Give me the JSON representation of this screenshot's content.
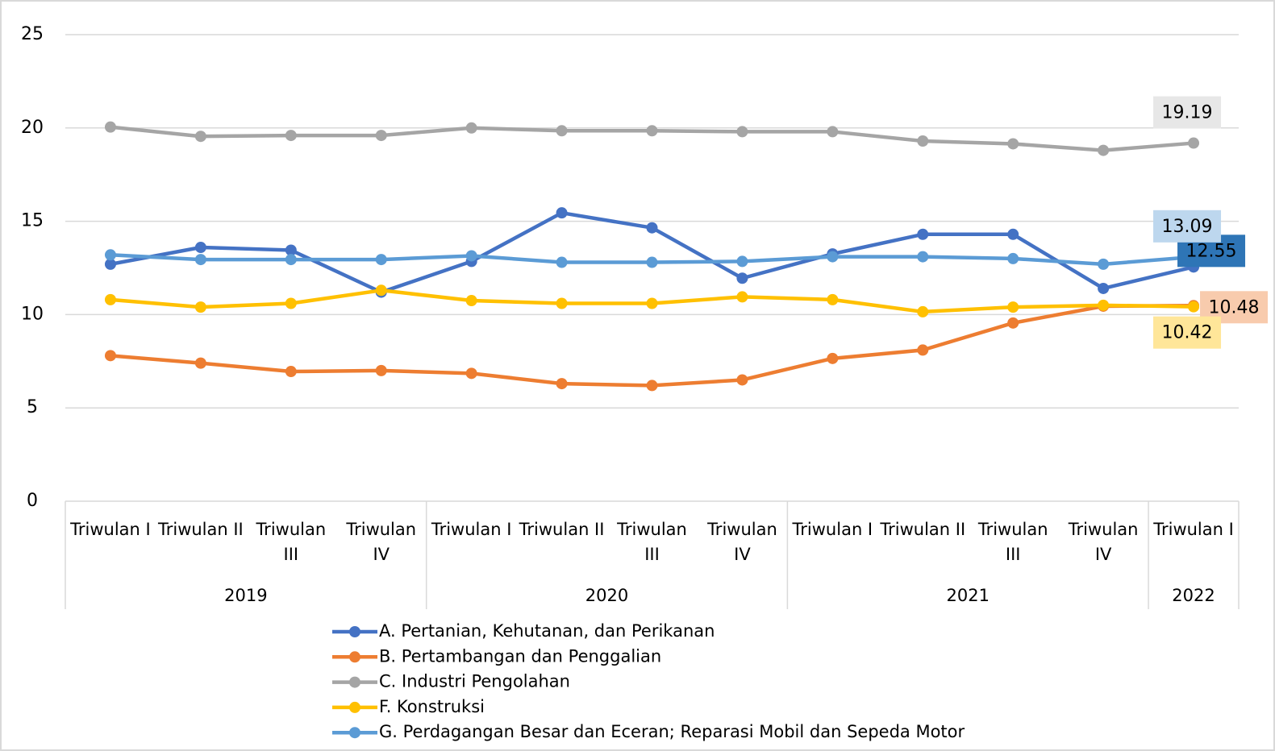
{
  "chart_data": {
    "type": "line",
    "categories": [
      "Triwulan I",
      "Triwulan II",
      "Triwulan III",
      "Triwulan IV",
      "Triwulan I",
      "Triwulan II",
      "Triwulan III",
      "Triwulan IV",
      "Triwulan I",
      "Triwulan II",
      "Triwulan III",
      "Triwulan IV",
      "Triwulan I"
    ],
    "year_groups": [
      {
        "name": "2019",
        "count": 4
      },
      {
        "name": "2020",
        "count": 4
      },
      {
        "name": "2021",
        "count": 4
      },
      {
        "name": "2022",
        "count": 1
      }
    ],
    "ylim": [
      0,
      25
    ],
    "yticks": [
      0,
      5,
      10,
      15,
      20,
      25
    ],
    "grid": true,
    "legend": "bottom",
    "series": [
      {
        "name": "A. Pertanian, Kehutanan, dan Perikanan",
        "color": "#4472c4",
        "label_fill": "#2e75b6",
        "values": [
          12.7,
          13.6,
          13.45,
          11.2,
          12.85,
          15.45,
          14.65,
          11.95,
          13.25,
          14.3,
          14.3,
          11.4,
          12.55
        ]
      },
      {
        "name": "B. Pertambangan dan Penggalian",
        "color": "#ed7d31",
        "label_fill": "#f8cbad",
        "values": [
          7.8,
          7.4,
          6.95,
          7.0,
          6.85,
          6.3,
          6.2,
          6.5,
          7.65,
          8.1,
          9.55,
          10.45,
          10.48
        ]
      },
      {
        "name": "C. Industri Pengolahan",
        "color": "#a5a5a5",
        "label_fill": "#e7e7e7",
        "values": [
          20.05,
          19.55,
          19.6,
          19.6,
          20.0,
          19.85,
          19.85,
          19.8,
          19.8,
          19.3,
          19.15,
          18.8,
          19.19
        ]
      },
      {
        "name": "F. Konstruksi",
        "color": "#ffc000",
        "label_fill": "#ffe699",
        "values": [
          10.8,
          10.4,
          10.6,
          11.3,
          10.75,
          10.6,
          10.6,
          10.95,
          10.8,
          10.15,
          10.4,
          10.5,
          10.42
        ]
      },
      {
        "name": "G. Perdagangan Besar dan Eceran; Reparasi Mobil dan Sepeda Motor",
        "color": "#5b9bd5",
        "label_fill": "#bdd7ee",
        "values": [
          13.2,
          12.95,
          12.95,
          12.95,
          13.15,
          12.8,
          12.8,
          12.85,
          13.1,
          13.1,
          13.0,
          12.7,
          13.09
        ]
      }
    ]
  }
}
